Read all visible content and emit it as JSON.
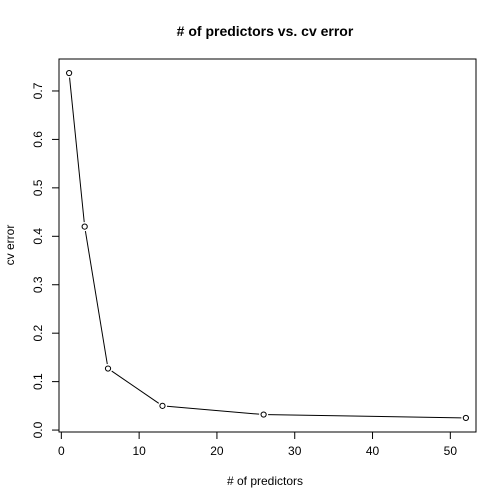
{
  "chart_data": {
    "type": "line",
    "title": "# of predictors vs. cv error",
    "xlabel": "# of predictors",
    "ylabel": "cv error",
    "x": [
      1,
      3,
      6,
      13,
      26,
      52
    ],
    "series": [
      {
        "values": [
          0.737,
          0.42,
          0.127,
          0.05,
          0.032,
          0.025
        ]
      }
    ],
    "xlim": [
      -0.3,
      53.3
    ],
    "ylim": [
      -0.004,
      0.766
    ],
    "xticks": [
      0,
      10,
      20,
      30,
      40,
      50
    ],
    "xtick_labels": [
      "0",
      "10",
      "20",
      "30",
      "40",
      "50"
    ],
    "yticks": [
      0.0,
      0.1,
      0.2,
      0.3,
      0.4,
      0.5,
      0.6,
      0.7
    ],
    "ytick_labels": [
      "0.0",
      "0.1",
      "0.2",
      "0.3",
      "0.4",
      "0.5",
      "0.6",
      "0.7"
    ],
    "grid": false,
    "markers": "open-circle",
    "line_color": "#000000"
  }
}
